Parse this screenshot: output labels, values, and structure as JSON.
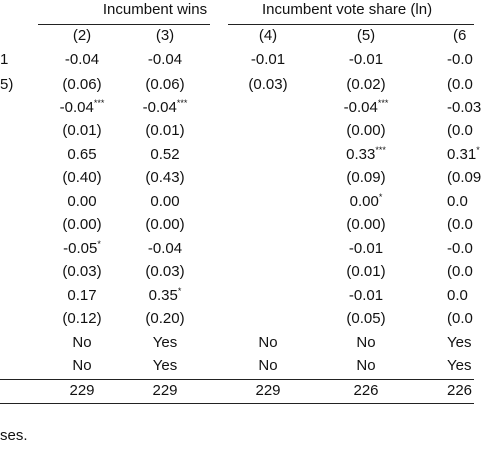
{
  "header": {
    "groups": [
      "Incumbent wins",
      "Incumbent vote share (ln)"
    ],
    "columns": [
      "(2)",
      "(3)",
      "(4)",
      "(5)",
      "(6"
    ]
  },
  "rows": [
    {
      "stub": "1",
      "cells": [
        "-0.04",
        "-0.04",
        "-0.01",
        "-0.01",
        "-0.0"
      ]
    },
    {
      "stub": "5)",
      "cells": [
        "(0.06)",
        "(0.06)",
        "(0.03)",
        "(0.02)",
        "(0.0"
      ]
    },
    {
      "cells": [
        {
          "text": "-0.04",
          "stars": "***"
        },
        {
          "text": "-0.04",
          "stars": "***"
        },
        null,
        {
          "text": "-0.04",
          "stars": "***"
        },
        "-0.03"
      ]
    },
    {
      "cells": [
        "(0.01)",
        "(0.01)",
        null,
        "(0.00)",
        "(0.0"
      ]
    },
    {
      "cells": [
        "0.65",
        "0.52",
        null,
        {
          "text": "0.33",
          "stars": "***"
        },
        {
          "text": "0.31",
          "stars": "*"
        }
      ]
    },
    {
      "cells": [
        "(0.40)",
        "(0.43)",
        null,
        "(0.09)",
        "(0.09"
      ]
    },
    {
      "cells": [
        "0.00",
        "0.00",
        null,
        {
          "text": "0.00",
          "stars": "*"
        },
        "0.0"
      ]
    },
    {
      "cells": [
        "(0.00)",
        "(0.00)",
        null,
        "(0.00)",
        "(0.0"
      ]
    },
    {
      "cells": [
        {
          "text": "-0.05",
          "stars": "*"
        },
        "-0.04",
        null,
        "-0.01",
        "-0.0"
      ]
    },
    {
      "cells": [
        "(0.03)",
        "(0.03)",
        null,
        "(0.01)",
        "(0.0"
      ]
    },
    {
      "cells": [
        "0.17",
        {
          "text": "0.35",
          "stars": "*"
        },
        null,
        "-0.01",
        "0.0"
      ]
    },
    {
      "cells": [
        "(0.12)",
        "(0.20)",
        null,
        "(0.05)",
        "(0.0"
      ]
    },
    {
      "cells": [
        "No",
        "Yes",
        "No",
        "No",
        "Yes"
      ]
    },
    {
      "cells": [
        "No",
        "Yes",
        "No",
        "No",
        "Yes"
      ]
    },
    {
      "cells": [
        "229",
        "229",
        "229",
        "226",
        "226"
      ]
    }
  ],
  "note": "ses."
}
